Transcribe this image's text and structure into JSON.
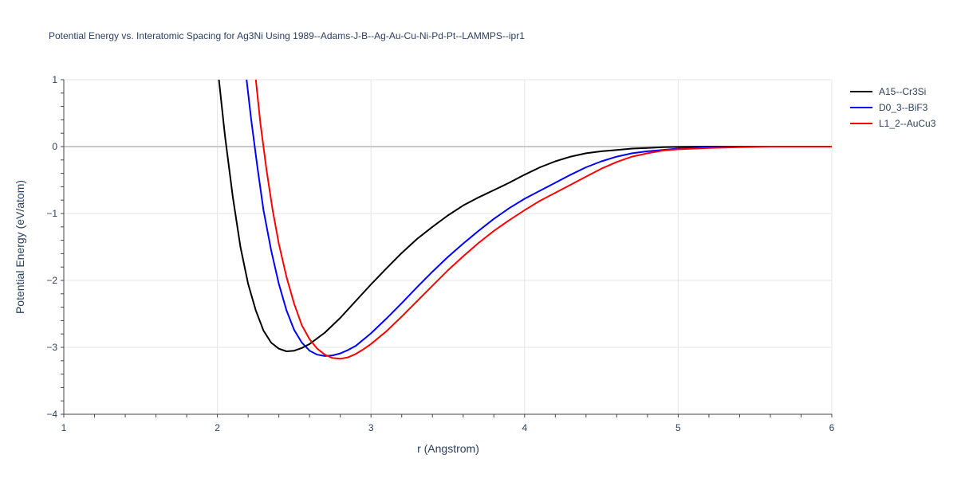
{
  "chart_data": {
    "type": "line",
    "title": "Potential Energy vs. Interatomic Spacing for Ag3Ni Using 1989--Adams-J-B--Ag-Au-Cu-Ni-Pd-Pt--LAMMPS--ipr1",
    "xlabel": "r (Angstrom)",
    "ylabel": "Potential Energy (eV/atom)",
    "xlim": [
      1,
      6
    ],
    "ylim": [
      -4,
      1
    ],
    "xticks": [
      1,
      2,
      3,
      4,
      5,
      6
    ],
    "yticks": [
      -4,
      -3,
      -2,
      -1,
      0,
      1
    ],
    "grid": true,
    "legend_position": "top-right",
    "series": [
      {
        "name": "A15--Cr3Si",
        "color": "#000000",
        "x": [
          2.01,
          2.05,
          2.1,
          2.15,
          2.2,
          2.25,
          2.3,
          2.35,
          2.4,
          2.45,
          2.5,
          2.55,
          2.6,
          2.7,
          2.8,
          2.9,
          3.0,
          3.1,
          3.2,
          3.3,
          3.4,
          3.5,
          3.6,
          3.7,
          3.8,
          3.9,
          4.0,
          4.1,
          4.2,
          4.3,
          4.4,
          4.5,
          4.6,
          4.7,
          4.8,
          4.9,
          5.0,
          5.2,
          5.4,
          5.6,
          5.8,
          6.0
        ],
        "y": [
          1.0,
          0.15,
          -0.75,
          -1.5,
          -2.05,
          -2.45,
          -2.75,
          -2.93,
          -3.02,
          -3.06,
          -3.05,
          -3.01,
          -2.95,
          -2.78,
          -2.56,
          -2.31,
          -2.06,
          -1.82,
          -1.59,
          -1.38,
          -1.2,
          -1.03,
          -0.88,
          -0.76,
          -0.65,
          -0.54,
          -0.42,
          -0.31,
          -0.22,
          -0.15,
          -0.1,
          -0.07,
          -0.05,
          -0.03,
          -0.02,
          -0.01,
          -0.005,
          0.0,
          0.0,
          0.0,
          0.0,
          0.0
        ]
      },
      {
        "name": "D0_3--BiF3",
        "color": "#0000ff",
        "x": [
          2.19,
          2.22,
          2.26,
          2.3,
          2.35,
          2.4,
          2.45,
          2.5,
          2.55,
          2.6,
          2.65,
          2.7,
          2.75,
          2.8,
          2.85,
          2.9,
          3.0,
          3.1,
          3.2,
          3.3,
          3.4,
          3.5,
          3.6,
          3.7,
          3.8,
          3.9,
          4.0,
          4.1,
          4.2,
          4.3,
          4.4,
          4.5,
          4.6,
          4.7,
          4.8,
          4.9,
          5.0,
          5.2,
          5.4,
          5.6,
          5.8,
          6.0
        ],
        "y": [
          1.0,
          0.4,
          -0.3,
          -0.95,
          -1.55,
          -2.05,
          -2.45,
          -2.74,
          -2.93,
          -3.05,
          -3.11,
          -3.13,
          -3.12,
          -3.09,
          -3.04,
          -2.98,
          -2.79,
          -2.57,
          -2.34,
          -2.1,
          -1.87,
          -1.65,
          -1.45,
          -1.26,
          -1.08,
          -0.92,
          -0.78,
          -0.66,
          -0.54,
          -0.42,
          -0.31,
          -0.22,
          -0.15,
          -0.1,
          -0.07,
          -0.05,
          -0.03,
          -0.01,
          0.0,
          0.0,
          0.0,
          0.0
        ]
      },
      {
        "name": "L1_2--AuCu3",
        "color": "#ff0000",
        "x": [
          2.25,
          2.28,
          2.32,
          2.36,
          2.4,
          2.45,
          2.5,
          2.55,
          2.6,
          2.65,
          2.7,
          2.75,
          2.8,
          2.85,
          2.9,
          2.95,
          3.0,
          3.1,
          3.2,
          3.3,
          3.4,
          3.5,
          3.6,
          3.7,
          3.8,
          3.9,
          4.0,
          4.1,
          4.2,
          4.3,
          4.4,
          4.5,
          4.6,
          4.7,
          4.8,
          4.9,
          5.0,
          5.2,
          5.4,
          5.6,
          5.8,
          6.0
        ],
        "y": [
          1.0,
          0.35,
          -0.35,
          -0.95,
          -1.45,
          -1.95,
          -2.35,
          -2.67,
          -2.88,
          -3.02,
          -3.11,
          -3.16,
          -3.17,
          -3.15,
          -3.1,
          -3.03,
          -2.95,
          -2.76,
          -2.54,
          -2.31,
          -2.08,
          -1.85,
          -1.64,
          -1.44,
          -1.26,
          -1.1,
          -0.95,
          -0.81,
          -0.69,
          -0.57,
          -0.45,
          -0.33,
          -0.23,
          -0.15,
          -0.1,
          -0.06,
          -0.04,
          -0.02,
          -0.01,
          0.0,
          0.0,
          0.0
        ]
      }
    ]
  }
}
